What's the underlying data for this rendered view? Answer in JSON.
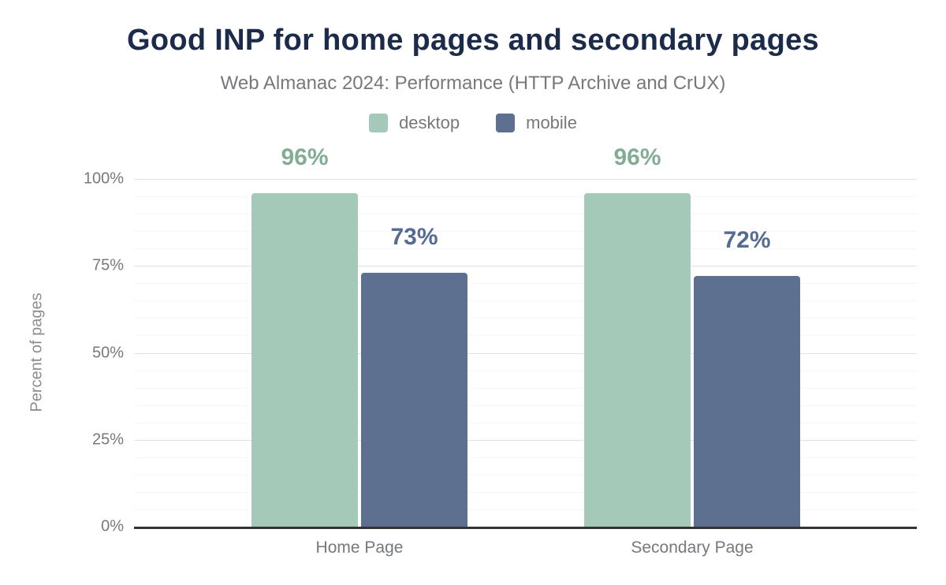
{
  "header": {
    "title": "Good INP for home pages and secondary pages",
    "subtitle": "Web Almanac 2024: Performance (HTTP Archive and CrUX)"
  },
  "chart_data": {
    "type": "bar",
    "title": "Good INP for home pages and secondary pages",
    "subtitle": "Web Almanac 2024: Performance (HTTP Archive and CrUX)",
    "categories": [
      "Home Page",
      "Secondary Page"
    ],
    "series": [
      {
        "name": "desktop",
        "values": [
          96,
          96
        ],
        "labels": [
          "96%",
          "96%"
        ],
        "color": "#a5c9b8",
        "label_color": "#82ad94"
      },
      {
        "name": "mobile",
        "values": [
          73,
          72
        ],
        "labels": [
          "73%",
          "72%"
        ],
        "color": "#5e708f",
        "label_color": "#566b93"
      }
    ],
    "xlabel": "",
    "ylabel": "Percent of pages",
    "ylim": [
      0,
      100
    ],
    "yticks": [
      0,
      25,
      50,
      75,
      100
    ],
    "ytick_labels": [
      "0%",
      "25%",
      "50%",
      "75%",
      "100%"
    ],
    "minor_grid_step": 5,
    "grid": true,
    "legend_position": "top",
    "colors": {
      "title": "#1c2b4a",
      "subtitle": "#75787d",
      "axis_line": "#333333",
      "major_gridline": "#e2e2e2",
      "minor_gridline": "#f6f6f6"
    }
  }
}
